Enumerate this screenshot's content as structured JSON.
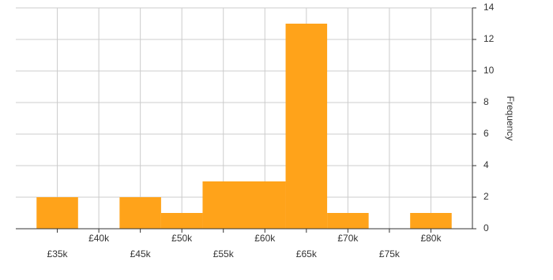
{
  "chart_data": {
    "type": "histogram",
    "y_label": "Frequency",
    "bins": [
      32500,
      37500,
      42500,
      47500,
      52500,
      57500,
      62500,
      67500,
      72500,
      77500,
      82500
    ],
    "values": [
      2,
      0,
      2,
      1,
      3,
      3,
      13,
      1,
      0,
      1
    ],
    "color": "#ffa31a",
    "xlim": [
      30000,
      85000
    ],
    "xticks": [
      {
        "value": 35000,
        "label": "£35k"
      },
      {
        "value": 40000,
        "label": "£40k"
      },
      {
        "value": 45000,
        "label": "£45k"
      },
      {
        "value": 50000,
        "label": "£50k"
      },
      {
        "value": 55000,
        "label": "£55k"
      },
      {
        "value": 60000,
        "label": "£60k"
      },
      {
        "value": 65000,
        "label": "£65k"
      },
      {
        "value": 70000,
        "label": "£70k"
      },
      {
        "value": 75000,
        "label": "£75k"
      },
      {
        "value": 80000,
        "label": "£80k"
      }
    ],
    "ylim": [
      0,
      14
    ],
    "yticks": [
      0,
      2,
      4,
      6,
      8,
      10,
      12,
      14
    ],
    "grid": true
  }
}
